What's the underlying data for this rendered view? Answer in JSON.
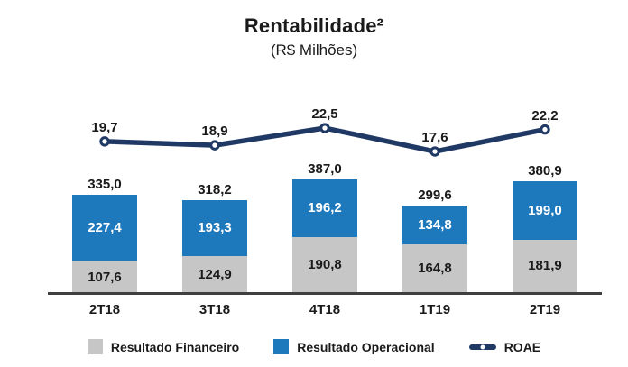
{
  "title": "Rentabilidade²",
  "subtitle": "(R$ Milhões)",
  "colors": {
    "financeiro_gray": "#C6C6C6",
    "operacional_blue": "#1E78BC",
    "roae_navy": "#1F3864",
    "axis": "#3F3F3F",
    "text_dark": "#1A1A1A",
    "label_on_blue": "#FFFFFF"
  },
  "legend": {
    "items": [
      {
        "label": "Resultado Financeiro"
      },
      {
        "label": "Resultado Operacional"
      },
      {
        "label": "ROAE"
      }
    ]
  },
  "chart_data": {
    "type": "bar",
    "subtype": "stacked-bars-with-line-overlay",
    "categories": [
      "2T18",
      "3T18",
      "4T18",
      "1T19",
      "2T19"
    ],
    "series": [
      {
        "name": "Resultado Financeiro",
        "type": "bar",
        "stack_position": "bottom",
        "values": [
          107.6,
          124.9,
          190.8,
          164.8,
          181.9
        ],
        "labels": [
          "107,6",
          "124,9",
          "190,8",
          "164,8",
          "181,9"
        ]
      },
      {
        "name": "Resultado Operacional",
        "type": "bar",
        "stack_position": "top",
        "values": [
          227.4,
          193.3,
          196.2,
          134.8,
          199.0
        ],
        "labels": [
          "227,4",
          "193,3",
          "196,2",
          "134,8",
          "199,0"
        ]
      },
      {
        "name": "ROAE",
        "type": "line",
        "values": [
          19.7,
          18.9,
          22.5,
          17.6,
          22.2
        ],
        "labels": [
          "19,7",
          "18,9",
          "22,5",
          "17,6",
          "22,2"
        ]
      }
    ],
    "totals": [
      335.0,
      318.2,
      387.0,
      299.6,
      380.9
    ],
    "total_labels": [
      "335,0",
      "318,2",
      "387,0",
      "299,6",
      "380,9"
    ],
    "title": "Rentabilidade²",
    "subtitle": "(R$ Milhões)",
    "xlabel": "",
    "ylabel": "R$ Milhões",
    "grid": false,
    "value_label_decimal_separator": ",",
    "legend_position": "bottom"
  }
}
